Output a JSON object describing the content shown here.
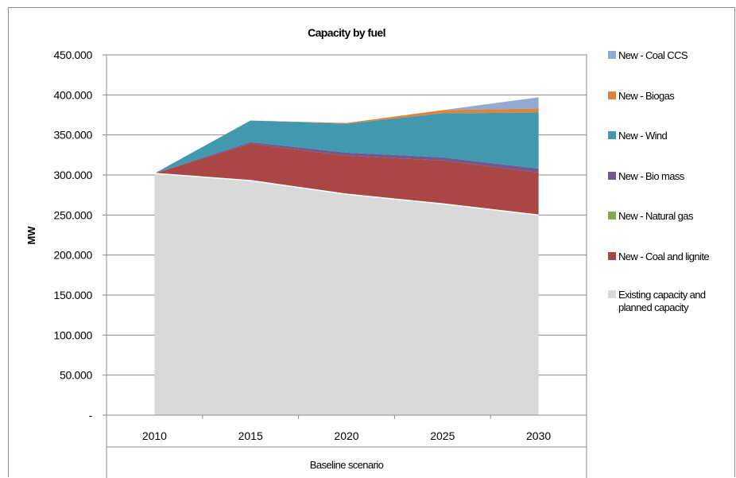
{
  "chart_data": {
    "type": "area",
    "stacked": true,
    "title": "Capacity by fuel",
    "xlabel": "Baseline scenario",
    "ylabel": "MW",
    "categories": [
      "2010",
      "2015",
      "2020",
      "2025",
      "2030"
    ],
    "ylim": [
      0,
      450000
    ],
    "yticks": [
      0,
      50000,
      100000,
      150000,
      200000,
      250000,
      300000,
      350000,
      400000,
      450000
    ],
    "ytick_labels": [
      "-",
      "50.000",
      "100.000",
      "150.000",
      "200.000",
      "250.000",
      "300.000",
      "350.000",
      "400.000",
      "450.000"
    ],
    "grid": true,
    "legend_position": "right",
    "series": [
      {
        "name": "Existing capacity and planned capacity",
        "color": "#d9d9d9",
        "values": [
          302000,
          293000,
          276000,
          264000,
          250000
        ]
      },
      {
        "name": "New - Coal and lignite",
        "color": "#aa4643",
        "values": [
          0,
          46000,
          48000,
          54000,
          53000
        ]
      },
      {
        "name": "New - Natural gas",
        "color": "#89a54e",
        "values": [
          0,
          0,
          0,
          0,
          0
        ]
      },
      {
        "name": "New - Bio mass",
        "color": "#71588f",
        "values": [
          0,
          2000,
          4000,
          4000,
          5000
        ]
      },
      {
        "name": "New - Wind",
        "color": "#4198af",
        "values": [
          0,
          27000,
          36000,
          55000,
          70000
        ]
      },
      {
        "name": "New - Biogas",
        "color": "#db843d",
        "values": [
          0,
          0,
          1000,
          4000,
          5000
        ]
      },
      {
        "name": "New - Coal CCS",
        "color": "#93a9cf",
        "values": [
          0,
          0,
          0,
          0,
          14000
        ]
      }
    ],
    "legend_order": [
      "New - Coal CCS",
      "New - Biogas",
      "New - Wind",
      "New - Bio mass",
      "New - Natural gas",
      "New - Coal and lignite",
      "Existing capacity and planned capacity"
    ]
  }
}
